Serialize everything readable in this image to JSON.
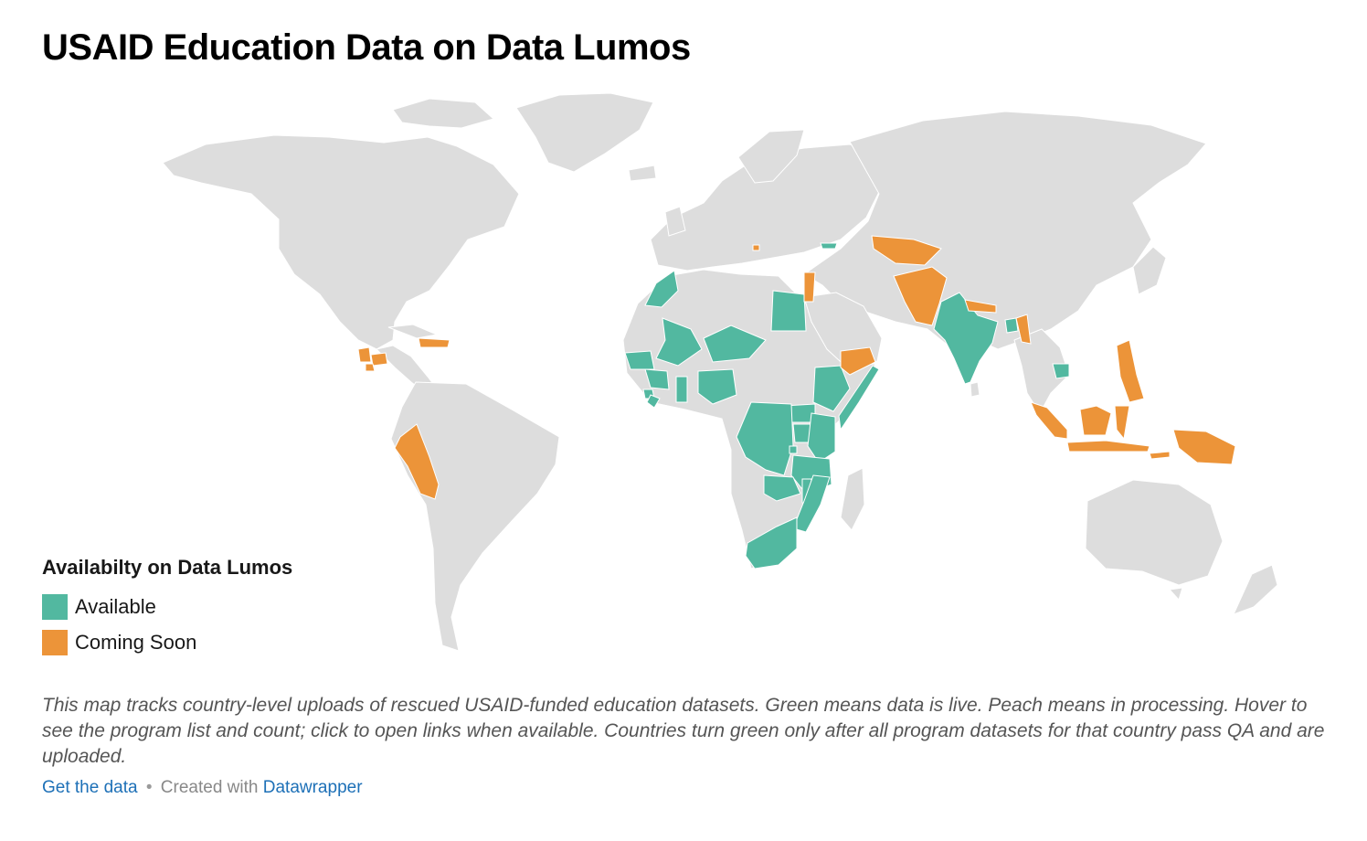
{
  "title": "USAID Education Data on Data Lumos",
  "legend": {
    "title": "Availabilty on Data Lumos",
    "items": [
      {
        "label": "Available",
        "color": "#52b8a0"
      },
      {
        "label": "Coming Soon",
        "color": "#ec9439"
      }
    ]
  },
  "colors": {
    "land": "#dddddd",
    "available": "#52b8a0",
    "coming_soon": "#ec9439"
  },
  "map_data": {
    "type": "choropleth",
    "available": [
      "Morocco",
      "Senegal",
      "Gambia",
      "Guinea",
      "Sierra Leone",
      "Liberia",
      "Mali",
      "Niger",
      "Ghana",
      "Nigeria",
      "Egypt",
      "Ethiopia",
      "Somalia",
      "Kenya",
      "Uganda",
      "Rwanda",
      "South Sudan",
      "DR Congo",
      "Tanzania",
      "Malawi",
      "Zambia",
      "Mozambique",
      "South Africa",
      "India",
      "Bangladesh",
      "Cambodia",
      "Georgia"
    ],
    "coming_soon": [
      "Peru",
      "Guatemala",
      "Honduras",
      "El Salvador",
      "Haiti",
      "Dominican Republic",
      "Jordan",
      "Lebanon",
      "Kosovo",
      "Yemen",
      "Afghanistan",
      "Pakistan",
      "Uzbekistan",
      "Tajikistan",
      "Kyrgyzstan",
      "Nepal",
      "Myanmar",
      "Philippines",
      "Indonesia",
      "Timor-Leste",
      "Papua New Guinea"
    ]
  },
  "description": "This map tracks country-level uploads of rescued USAID-funded education datasets. Green means data is live. Peach means in processing. Hover to see the program list and count; click to open links when available. Countries turn green only after all program datasets for that country pass QA and are uploaded.",
  "footer": {
    "get_data": "Get the data",
    "separator": "•",
    "created_with": "Created with",
    "tool": "Datawrapper"
  }
}
